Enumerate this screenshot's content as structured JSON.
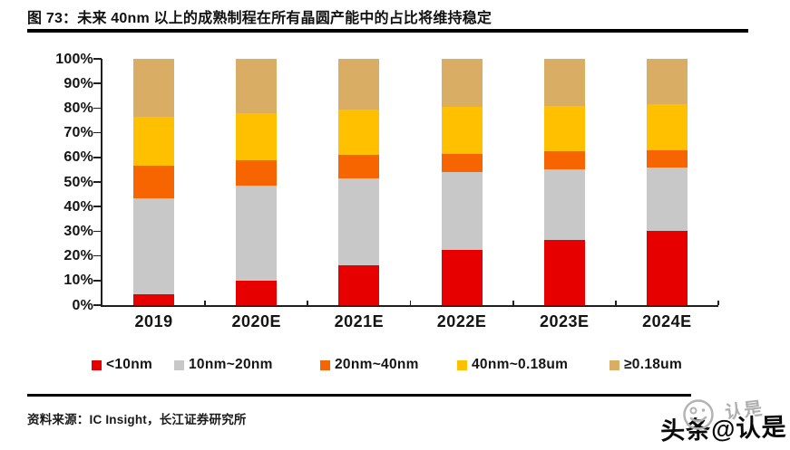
{
  "figure": {
    "title": "图 73：未来 40nm 以上的成熟制程在所有晶圆产能中的占比将维持稳定"
  },
  "source": {
    "label": "资料来源：",
    "text": "IC Insight，长江证券研究所"
  },
  "watermark": {
    "main": "头条@认是",
    "ghost": "认是",
    "smiley_icon": "smiley-face-doodle"
  },
  "chart_data": {
    "type": "bar",
    "stacked": true,
    "percent": true,
    "grid": false,
    "legend_position": "bottom",
    "unit": "%",
    "ylim": [
      0,
      100
    ],
    "yticks": [
      "0%",
      "10%",
      "20%",
      "30%",
      "40%",
      "50%",
      "60%",
      "70%",
      "80%",
      "90%",
      "100%"
    ],
    "categories": [
      "2019",
      "2020E",
      "2021E",
      "2022E",
      "2023E",
      "2024E"
    ],
    "series": [
      {
        "name": "<10nm",
        "color": "#e60000",
        "values": [
          4.5,
          10,
          16,
          22.5,
          26.5,
          30
        ]
      },
      {
        "name": "10nm~20nm",
        "color": "#c8c8c8",
        "values": [
          39,
          38.5,
          35.5,
          31.5,
          28.5,
          26
        ]
      },
      {
        "name": "20nm~40nm",
        "color": "#f76500",
        "values": [
          13,
          10.5,
          9.5,
          7.5,
          7.5,
          7
        ]
      },
      {
        "name": "40nm~0.18um",
        "color": "#ffc000",
        "values": [
          20,
          19,
          18.5,
          19,
          18.5,
          18.5
        ]
      },
      {
        "name": "≥0.18um",
        "color": "#d9ad63",
        "values": [
          23.5,
          22,
          20.5,
          19.5,
          19,
          18.5
        ]
      }
    ]
  }
}
